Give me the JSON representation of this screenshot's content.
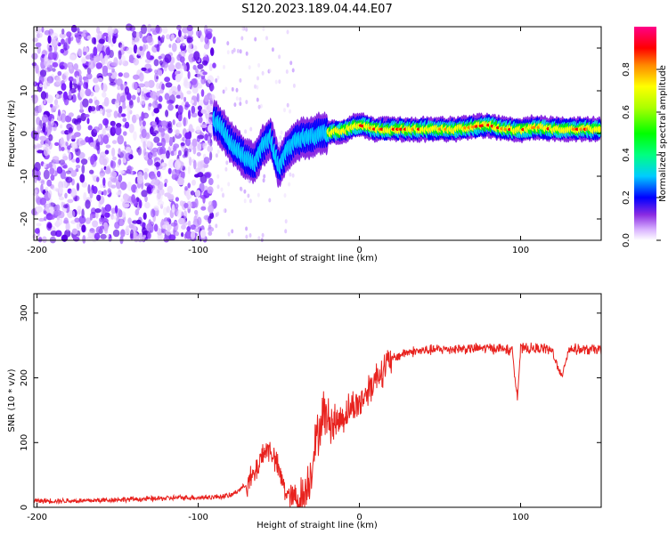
{
  "title": "S120.2023.189.04.44.E07",
  "chart_data": [
    {
      "type": "heatmap",
      "xlabel": "Height of straight line (km)",
      "ylabel": "Frequency (Hz)",
      "xlim": [
        -202,
        150
      ],
      "ylim": [
        -25,
        25
      ],
      "xticks": [
        -200,
        -100,
        0,
        100
      ],
      "yticks": [
        -20,
        -10,
        0,
        10,
        20
      ],
      "colorbar": {
        "label": "Normalized spectral amplitude",
        "range": [
          0,
          1
        ],
        "ticks": [
          0.0,
          0.2,
          0.4,
          0.6,
          0.8
        ],
        "tick_labels": [
          "0.0",
          "0.2",
          "0.4",
          "0.6",
          "0.8"
        ]
      },
      "noise_region_x": [
        -202,
        -90
      ],
      "signal_track": [
        {
          "x": -90,
          "y": 3
        },
        {
          "x": -85,
          "y": 1
        },
        {
          "x": -80,
          "y": -2
        },
        {
          "x": -75,
          "y": -4
        },
        {
          "x": -70,
          "y": -6
        },
        {
          "x": -65,
          "y": -7
        },
        {
          "x": -60,
          "y": -3
        },
        {
          "x": -55,
          "y": -1
        },
        {
          "x": -50,
          "y": -8
        },
        {
          "x": -45,
          "y": -4
        },
        {
          "x": -40,
          "y": -2
        },
        {
          "x": -35,
          "y": -1
        },
        {
          "x": -30,
          "y": -1
        },
        {
          "x": -25,
          "y": 0
        },
        {
          "x": -20,
          "y": 0
        },
        {
          "x": -15,
          "y": 0.5
        },
        {
          "x": -10,
          "y": 0.5
        },
        {
          "x": -5,
          "y": 1.5
        },
        {
          "x": 0,
          "y": 2
        },
        {
          "x": 10,
          "y": 1
        },
        {
          "x": 20,
          "y": 1
        },
        {
          "x": 40,
          "y": 1
        },
        {
          "x": 60,
          "y": 1
        },
        {
          "x": 80,
          "y": 2
        },
        {
          "x": 90,
          "y": 1
        },
        {
          "x": 100,
          "y": 0.8
        },
        {
          "x": 110,
          "y": 1.5
        },
        {
          "x": 120,
          "y": 1
        },
        {
          "x": 130,
          "y": 1
        },
        {
          "x": 150,
          "y": 1
        }
      ]
    },
    {
      "type": "line",
      "xlabel": "Height of straight line (km)",
      "ylabel": "SNR (10 * v/v)",
      "xlim": [
        -202,
        150
      ],
      "ylim": [
        0,
        330
      ],
      "xticks": [
        -200,
        -100,
        0,
        100
      ],
      "yticks": [
        0,
        100,
        200,
        300
      ],
      "series": [
        {
          "name": "SNR",
          "color": "#e8221e",
          "x": [
            -202,
            -190,
            -170,
            -150,
            -130,
            -110,
            -100,
            -90,
            -80,
            -70,
            -65,
            -60,
            -55,
            -50,
            -45,
            -40,
            -35,
            -30,
            -28,
            -25,
            -22,
            -20,
            -15,
            -10,
            -5,
            0,
            5,
            10,
            15,
            20,
            25,
            30,
            40,
            50,
            60,
            70,
            80,
            90,
            95,
            98,
            100,
            105,
            110,
            115,
            120,
            125,
            130,
            140,
            150
          ],
          "y": [
            10,
            10,
            10,
            12,
            13,
            15,
            15,
            16,
            18,
            35,
            50,
            85,
            90,
            55,
            20,
            12,
            15,
            55,
            90,
            120,
            150,
            135,
            130,
            140,
            155,
            160,
            180,
            200,
            215,
            228,
            235,
            240,
            242,
            244,
            245,
            245,
            246,
            245,
            240,
            170,
            245,
            245,
            245,
            246,
            240,
            200,
            245,
            243,
            244
          ]
        }
      ]
    }
  ]
}
